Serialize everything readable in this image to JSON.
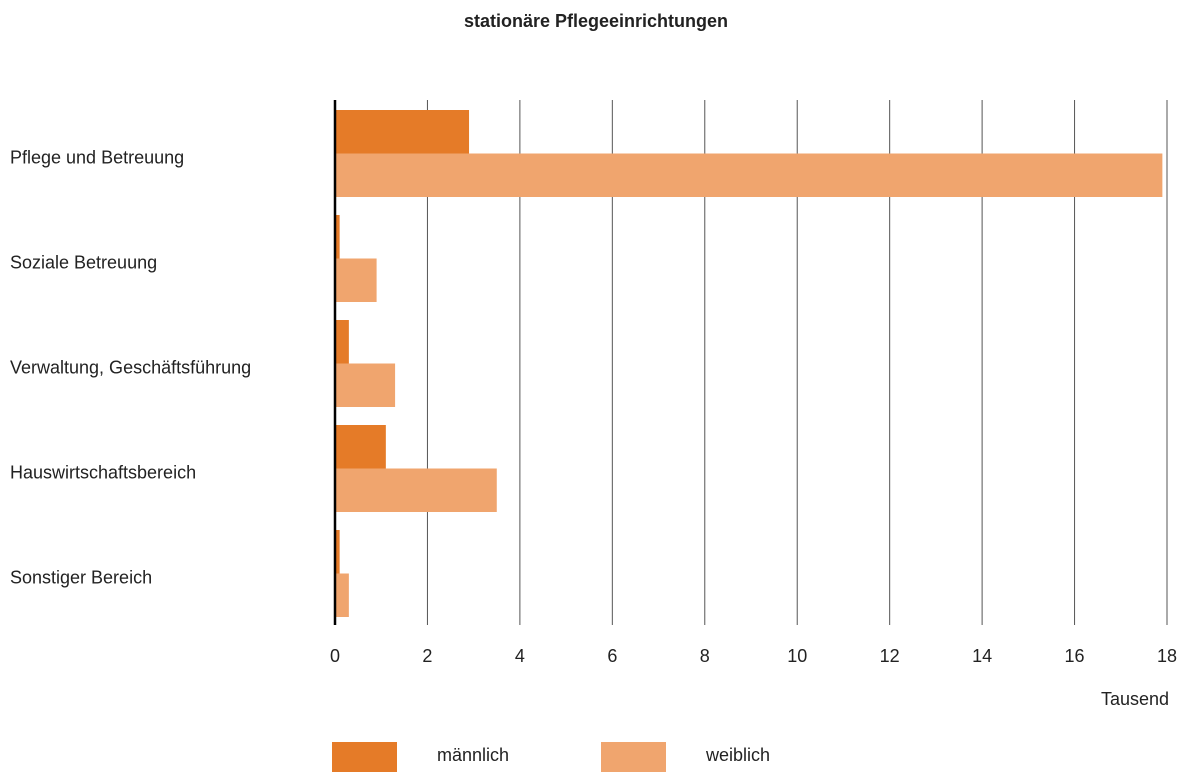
{
  "chart_data": {
    "type": "hbar",
    "title": "stationäre Pflegeeinrichtungen",
    "categories": [
      "Pflege und Betreuung",
      "Soziale Betreuung",
      "Verwaltung, Geschäftsführung",
      "Hauswirtschaftsbereich",
      "Sonstiger Bereich"
    ],
    "series": [
      {
        "name": "männlich",
        "color": "#e57b28",
        "values": [
          2.9,
          0.1,
          0.3,
          1.1,
          0.1
        ]
      },
      {
        "name": "weiblich",
        "color": "#f0a56e",
        "values": [
          17.9,
          0.9,
          1.3,
          3.5,
          0.3
        ]
      }
    ],
    "xlim": [
      0,
      18
    ],
    "xticks": [
      0,
      2,
      4,
      6,
      8,
      10,
      12,
      14,
      16,
      18
    ],
    "x_label": "Tausend",
    "grid": true
  }
}
